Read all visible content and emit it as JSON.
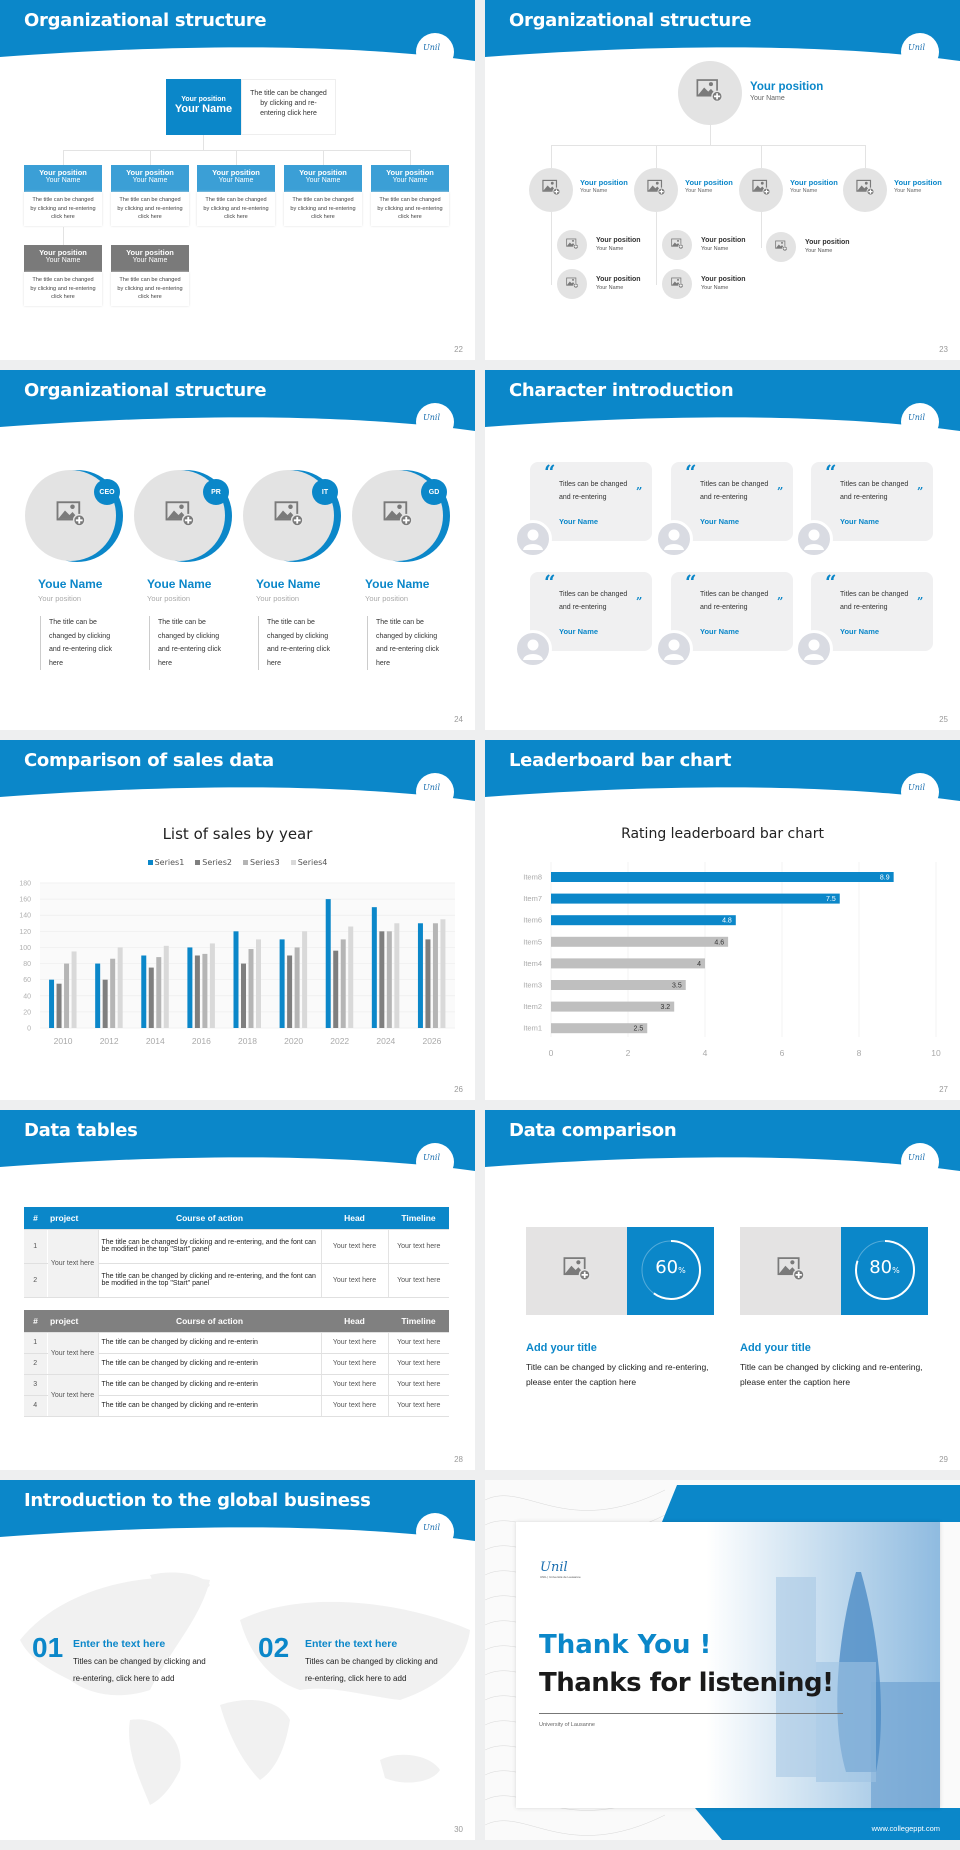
{
  "colors": {
    "accent": "#0b87c9",
    "dark_gray": "#7f7f7f",
    "light_gray": "#e6e6e6"
  },
  "slide22": {
    "title": "Organizational structure",
    "page": "22",
    "top": {
      "position": "Your position",
      "name": "Your Name",
      "desc": "The title can be changed by clicking and re-entering click here"
    },
    "row1": [
      {
        "position": "Your position",
        "name": "Your Name",
        "desc": "The title can be changed by clicking and re-entering click here"
      },
      {
        "position": "Your position",
        "name": "Your Name",
        "desc": "The title can be changed by clicking and re-entering click here"
      },
      {
        "position": "Your position",
        "name": "Your Name",
        "desc": "The title can be changed by clicking and re-entering click here"
      },
      {
        "position": "Your position",
        "name": "Your Name",
        "desc": "The title can be changed by clicking and re-entering click here"
      },
      {
        "position": "Your position",
        "name": "Your Name",
        "desc": "The title can be changed by clicking and re-entering click here"
      }
    ],
    "row2": [
      {
        "position": "Your position",
        "name": "Your Name",
        "desc": "The title can be changed by clicking and re-entering click here"
      },
      {
        "position": "Your position",
        "name": "Your Name",
        "desc": "The title can be changed by clicking and re-entering click here"
      }
    ]
  },
  "slide23": {
    "title": "Organizational structure",
    "page": "23",
    "top": {
      "position": "Your position",
      "name": "Your Name"
    },
    "level2": [
      {
        "position": "Your position",
        "name": "Your Name"
      },
      {
        "position": "Your position",
        "name": "Your Name"
      },
      {
        "position": "Your position",
        "name": "Your Name"
      },
      {
        "position": "Your position",
        "name": "Your Name"
      }
    ],
    "level3": [
      {
        "position": "Your position",
        "name": "Your Name"
      },
      {
        "position": "Your position",
        "name": "Your Name"
      },
      {
        "position": "Your position",
        "name": "Your Name"
      },
      {
        "position": "Your position",
        "name": "Your Name"
      },
      {
        "position": "Your position",
        "name": "Your Name"
      }
    ]
  },
  "slide24": {
    "title": "Organizational structure",
    "page": "24",
    "members": [
      {
        "badge": "CEO",
        "name": "Youe Name",
        "position": "Your position",
        "desc": "The title can be changed by clicking and re-entering click here"
      },
      {
        "badge": "PR",
        "name": "Youe Name",
        "position": "Your position",
        "desc": "The title can be changed by clicking and re-entering click here"
      },
      {
        "badge": "IT",
        "name": "Youe Name",
        "position": "Your position",
        "desc": "The title can be changed by clicking and re-entering click here"
      },
      {
        "badge": "GD",
        "name": "Youe Name",
        "position": "Your position",
        "desc": "The title can be changed by clicking and re-entering click here"
      }
    ]
  },
  "slide25": {
    "title": "Character introduction",
    "page": "25",
    "cards": [
      {
        "quote": "Titles can be changed and re-entering",
        "name": "Your Name"
      },
      {
        "quote": "Titles can be changed and re-entering",
        "name": "Your Name"
      },
      {
        "quote": "Titles can be changed and re-entering",
        "name": "Your Name"
      },
      {
        "quote": "Titles can be changed and re-entering",
        "name": "Your Name"
      },
      {
        "quote": "Titles can be changed and re-entering",
        "name": "Your Name"
      },
      {
        "quote": "Titles can be changed and re-entering",
        "name": "Your Name"
      }
    ]
  },
  "slide26": {
    "title": "Comparison of sales data",
    "page": "26"
  },
  "slide27": {
    "title": "Leaderboard bar chart",
    "page": "27"
  },
  "chart_data": [
    {
      "type": "bar",
      "title": "List of sales by year",
      "categories": [
        "2010",
        "2012",
        "2014",
        "2016",
        "2018",
        "2020",
        "2022",
        "2024",
        "2026"
      ],
      "series": [
        {
          "name": "Series1",
          "color": "#0b87c9",
          "values": [
            60,
            80,
            90,
            100,
            120,
            110,
            160,
            150,
            130
          ]
        },
        {
          "name": "Series2",
          "color": "#7f7f7f",
          "values": [
            55,
            60,
            75,
            90,
            80,
            90,
            96,
            120,
            110
          ]
        },
        {
          "name": "Series3",
          "color": "#b5b5b5",
          "values": [
            80,
            86,
            88,
            92,
            98,
            100,
            110,
            120,
            130
          ]
        },
        {
          "name": "Series4",
          "color": "#d9d9d9",
          "values": [
            95,
            100,
            102,
            105,
            110,
            120,
            126,
            130,
            135
          ]
        }
      ],
      "ylim": [
        0,
        180
      ],
      "yticks": [
        0,
        20,
        40,
        60,
        80,
        100,
        120,
        140,
        160,
        180
      ],
      "grid": true,
      "legend": "top"
    },
    {
      "type": "bar",
      "orientation": "horizontal",
      "title": "Rating leaderboard bar chart",
      "categories": [
        "Item8",
        "Item7",
        "Item6",
        "Item5",
        "Item4",
        "Item3",
        "Item2",
        "Item1"
      ],
      "values": [
        8.9,
        7.5,
        4.8,
        4.6,
        4,
        3.5,
        3.2,
        2.5
      ],
      "data_labels": [
        "8.9",
        "7.5",
        "4.8",
        "4.6",
        "4",
        "3.5",
        "3.2",
        "2.5"
      ],
      "highlight_color": "#0b87c9",
      "color": "#bfbfbf",
      "highlighted": [
        "Item8",
        "Item7",
        "Item6"
      ],
      "xlim": [
        0,
        10
      ],
      "xticks": [
        0,
        2,
        4,
        6,
        8,
        10
      ],
      "grid": true
    }
  ],
  "slide28": {
    "title": "Data tables",
    "page": "28",
    "headers": [
      "#",
      "project",
      "Course of action",
      "Head",
      "Timeline"
    ],
    "table1": [
      {
        "project": "Your text here",
        "rows": [
          {
            "num": "1",
            "action": "The title can be changed by clicking and re-entering, and the font can be modified in the top \"Start\" panel",
            "head": "Your text here",
            "timeline": "Your text here"
          },
          {
            "num": "2",
            "action": "The title can be changed by clicking and re-entering, and the font can be modified in the top \"Start\" panel",
            "head": "Your text here",
            "timeline": "Your text here"
          }
        ]
      }
    ],
    "table2": [
      {
        "project": "Your text here",
        "rows": [
          {
            "num": "1",
            "action": "The title can be changed by clicking and re-enterin",
            "head": "Your text here",
            "timeline": "Your text here"
          },
          {
            "num": "2",
            "action": "The title can be changed by clicking and re-enterin",
            "head": "Your text here",
            "timeline": "Your text here"
          }
        ]
      },
      {
        "project": "Your text here",
        "rows": [
          {
            "num": "3",
            "action": "The title can be changed by clicking and re-enterin",
            "head": "Your text here",
            "timeline": "Your text here"
          },
          {
            "num": "4",
            "action": "The title can be changed by clicking and re-enterin",
            "head": "Your text here",
            "timeline": "Your text here"
          }
        ]
      }
    ]
  },
  "slide29": {
    "title": "Data comparison",
    "page": "29",
    "panels": [
      {
        "percent": 60,
        "value": "60",
        "unit": "%",
        "title": "Add your title",
        "desc": "Title can be changed by clicking and re-entering, please enter the caption here"
      },
      {
        "percent": 80,
        "value": "80",
        "unit": "%",
        "title": "Add your title",
        "desc": "Title can be changed by clicking and re-entering, please enter the caption here"
      }
    ]
  },
  "slide30": {
    "title": "Introduction to the global business",
    "page": "30",
    "items": [
      {
        "num": "01",
        "heading": "Enter the text here",
        "desc": "Titles can be changed by clicking and re-entering, click here to add"
      },
      {
        "num": "02",
        "heading": "Enter the text here",
        "desc": "Titles can be changed by clicking and re-entering, click here to add"
      }
    ]
  },
  "slide31": {
    "logo_text": "Unil",
    "logo_subtitle": "UNIL | Université de Lausanne",
    "thanks": "Thank You !",
    "subtitle": "Thanks for listening!",
    "university": "University of Lausanne",
    "website": "www.collegeppt.com"
  },
  "header_logo": "Unil"
}
